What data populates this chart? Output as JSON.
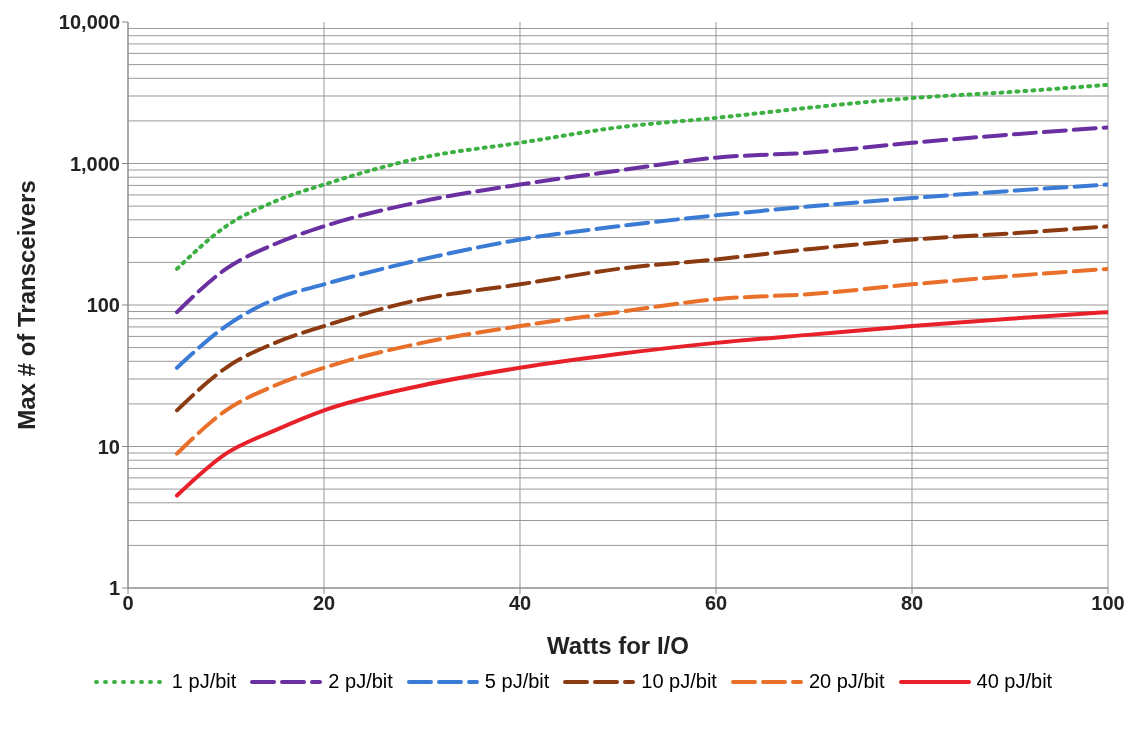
{
  "chart_data": {
    "type": "line",
    "xlabel": "Watts for I/O",
    "ylabel": "Max # of Transceivers",
    "x": [
      5,
      10,
      15,
      20,
      30,
      40,
      50,
      60,
      70,
      80,
      90,
      100
    ],
    "xlim": [
      0,
      100
    ],
    "xticks": [
      0,
      20,
      40,
      60,
      80,
      100
    ],
    "ylim": [
      1,
      10000
    ],
    "yticks": [
      1,
      10,
      100,
      {
        "value": 1000,
        "label": "1,000"
      },
      {
        "value": 10000,
        "label": "10,000"
      }
    ],
    "log": "y",
    "grid": true,
    "legend": "bottom",
    "series": [
      {
        "name": "1 pJ/bit",
        "color": "#3cb043",
        "line_style": "dotted",
        "values": [
          180,
          360,
          540,
          710,
          1100,
          1400,
          1800,
          2100,
          2500,
          2900,
          3200,
          3600
        ]
      },
      {
        "name": "2 pJ/bit",
        "color": "#6a2fa0",
        "line_style": "dashed",
        "values": [
          89,
          180,
          270,
          360,
          540,
          710,
          890,
          1100,
          1200,
          1400,
          1600,
          1800
        ]
      },
      {
        "name": "5 pJ/bit",
        "color": "#3a7bd5",
        "line_style": "dashed",
        "values": [
          36,
          71,
          110,
          140,
          210,
          290,
          360,
          430,
          500,
          570,
          640,
          710
        ]
      },
      {
        "name": "10 pJ/bit",
        "color": "#8b3a12",
        "line_style": "dashed",
        "values": [
          18,
          36,
          54,
          71,
          110,
          140,
          180,
          210,
          250,
          290,
          320,
          360
        ]
      },
      {
        "name": "20 pJ/bit",
        "color": "#e8702a",
        "line_style": "dashed",
        "values": [
          8.9,
          18,
          27,
          36,
          54,
          71,
          89,
          110,
          120,
          140,
          160,
          180
        ]
      },
      {
        "name": "40 pJ/bit",
        "color": "#e8202a",
        "line_style": "solid",
        "values": [
          4.5,
          8.9,
          13,
          18,
          27,
          36,
          45,
          54,
          62,
          71,
          80,
          89
        ]
      }
    ]
  }
}
